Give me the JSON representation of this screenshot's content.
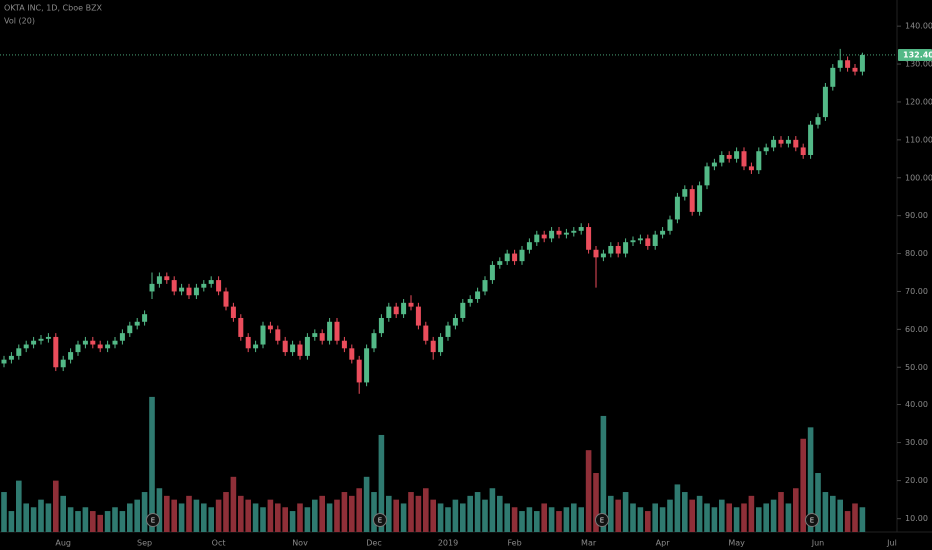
{
  "chart_data": {
    "type": "candlestick",
    "title": "OKTA INC, 1D, Cboe BZX",
    "volume_title": "Vol (20)",
    "earnings_labels": [
      "E",
      "E",
      "E",
      "E"
    ],
    "last_label": "132.40",
    "up_color": "#53b987",
    "down_color": "#eb4d5c",
    "volume_up_color": "#2f7a70",
    "volume_down_color": "#8f2f38",
    "categories": [
      null,
      null,
      null,
      null,
      null,
      null,
      null,
      null,
      "Aug",
      null,
      null,
      null,
      null,
      null,
      null,
      null,
      null,
      null,
      null,
      "Sep",
      null,
      null,
      null,
      null,
      null,
      null,
      null,
      null,
      null,
      "Oct",
      null,
      null,
      null,
      null,
      null,
      null,
      null,
      null,
      null,
      null,
      "Nov",
      null,
      null,
      null,
      null,
      null,
      null,
      null,
      null,
      null,
      "Dec",
      null,
      null,
      null,
      null,
      null,
      null,
      null,
      null,
      null,
      "2019",
      null,
      null,
      null,
      null,
      null,
      null,
      null,
      null,
      "Feb",
      null,
      null,
      null,
      null,
      null,
      null,
      null,
      null,
      null,
      "Mar",
      null,
      null,
      null,
      null,
      null,
      null,
      null,
      null,
      null,
      "Apr",
      null,
      null,
      null,
      null,
      null,
      null,
      null,
      null,
      null,
      "May",
      null,
      null,
      null,
      null,
      null,
      null,
      null,
      null,
      null,
      null,
      "Jun",
      null,
      null,
      null,
      null,
      null,
      null,
      null,
      null,
      null,
      "Jul"
    ],
    "open": [
      51,
      52,
      53,
      55,
      56,
      57,
      57.5,
      58,
      50,
      52,
      54,
      56,
      57,
      56,
      55,
      56,
      57,
      59,
      61,
      62,
      70,
      72,
      74,
      73,
      70,
      71,
      69,
      71,
      72,
      73,
      70,
      66,
      63,
      58,
      55,
      56,
      61,
      60,
      57,
      54,
      56,
      53,
      58,
      59,
      57,
      62,
      57,
      55,
      52,
      46,
      55,
      59,
      63,
      66,
      64,
      67,
      66,
      61,
      57,
      54,
      58,
      61,
      63,
      67,
      68,
      70,
      73,
      77,
      78,
      80,
      78,
      81,
      83,
      85,
      84,
      86,
      85,
      85.5,
      86,
      87,
      81,
      79,
      80,
      82,
      80,
      83,
      83.5,
      84,
      82,
      85,
      86,
      89,
      95,
      97,
      91,
      98,
      103,
      104,
      106,
      105,
      107,
      103,
      102,
      107,
      108,
      110,
      109,
      110,
      108,
      106,
      114,
      116,
      124,
      129,
      131,
      129,
      128,
      null,
      null,
      null,
      null
    ],
    "high": [
      53,
      54,
      56,
      57,
      58,
      58.5,
      59,
      59,
      53,
      55,
      57,
      58,
      58,
      57,
      57,
      58,
      60,
      62,
      63,
      65,
      75,
      75,
      75,
      74,
      72,
      72,
      72,
      73,
      74,
      74,
      71,
      67,
      64,
      59,
      57,
      62,
      62,
      61,
      58,
      57,
      57,
      59,
      60,
      60,
      63,
      63,
      58,
      56,
      53,
      56,
      60,
      64,
      67,
      67,
      68,
      69,
      67,
      62,
      58,
      59,
      62,
      64,
      68,
      69,
      71,
      74,
      78,
      79,
      81,
      81,
      82,
      84,
      86,
      86,
      87,
      87,
      86.5,
      87,
      88,
      88,
      82,
      81,
      83,
      83,
      84,
      84.5,
      85,
      85,
      86,
      87,
      90,
      96,
      98,
      98,
      99,
      104,
      105,
      107,
      107,
      108,
      108,
      104,
      108,
      109,
      111,
      111,
      111,
      111,
      109,
      115,
      117,
      125,
      130,
      134,
      132,
      130,
      133,
      null,
      null,
      null,
      null
    ],
    "low": [
      50,
      51,
      52,
      54,
      55,
      56,
      56.5,
      49,
      49,
      51,
      53,
      55,
      55,
      54,
      54,
      55,
      56,
      58,
      60,
      61,
      68,
      71,
      72,
      69,
      69,
      68,
      68,
      70,
      71,
      69,
      65,
      62,
      57,
      54,
      54,
      55,
      59,
      56,
      53,
      53,
      52,
      52,
      57,
      56,
      56,
      56,
      54,
      51,
      43,
      45,
      54,
      58,
      62,
      63,
      63,
      65,
      60,
      56,
      52,
      53,
      57,
      60,
      62,
      66,
      67,
      69,
      72,
      76,
      77,
      77,
      77,
      80,
      82,
      83,
      83,
      84,
      84,
      84.5,
      85,
      80,
      71,
      78,
      79,
      79,
      79,
      82,
      82.5,
      81,
      81,
      84,
      85,
      88,
      94,
      90,
      90,
      97,
      102,
      103,
      104,
      104,
      102,
      101,
      101,
      106,
      107,
      108,
      108,
      107,
      105,
      105,
      113,
      115,
      123,
      128,
      128,
      127,
      127,
      null,
      null,
      null,
      null
    ],
    "close": [
      52,
      53,
      55,
      56,
      57,
      57.5,
      58,
      50,
      52,
      54,
      56,
      57,
      56,
      55,
      56,
      57,
      59,
      61,
      62,
      64,
      72,
      74,
      73,
      70,
      71,
      69,
      71,
      72,
      73,
      70,
      66,
      63,
      58,
      55,
      56,
      61,
      60,
      57,
      54,
      56,
      53,
      58,
      59,
      57,
      62,
      57,
      55,
      52,
      46,
      55,
      59,
      63,
      66,
      64,
      67,
      66,
      61,
      57,
      54,
      58,
      61,
      63,
      67,
      68,
      70,
      73,
      77,
      78,
      80,
      78,
      81,
      83,
      85,
      84,
      86,
      85,
      85.5,
      86,
      87,
      81,
      79,
      80,
      82,
      80,
      83,
      83.5,
      84,
      82,
      85,
      86,
      89,
      95,
      97,
      91,
      98,
      103,
      104,
      106,
      105,
      107,
      103,
      102,
      107,
      108,
      110,
      109,
      110,
      108,
      106,
      114,
      116,
      124,
      129,
      131,
      129,
      128,
      132.4,
      null,
      null,
      null,
      null
    ],
    "volume": [
      17,
      12,
      20,
      14,
      13,
      15,
      14,
      20,
      16,
      13,
      12,
      13,
      12,
      11,
      12,
      13,
      12,
      14,
      15,
      17,
      42,
      18,
      16,
      15,
      14,
      16,
      15,
      14,
      13,
      15,
      17,
      21,
      16,
      15,
      14,
      13,
      15,
      14,
      13,
      12,
      14,
      13,
      15,
      16,
      14,
      15,
      17,
      16,
      18,
      21,
      17,
      32,
      16,
      15,
      14,
      17,
      16,
      18,
      15,
      14,
      13,
      15,
      14,
      16,
      17,
      15,
      18,
      16,
      14,
      13,
      12,
      13,
      12,
      14,
      13,
      12,
      13,
      14,
      13,
      28,
      22,
      37,
      16,
      15,
      17,
      14,
      13,
      12,
      14,
      13,
      15,
      19,
      17,
      15,
      16,
      14,
      13,
      15,
      14,
      13,
      14,
      16,
      13,
      14,
      15,
      17,
      14,
      18,
      31,
      34,
      22,
      17,
      16,
      15,
      12,
      14,
      13,
      null,
      null,
      null,
      null
    ],
    "ylim": [
      44,
      146.9
    ],
    "yticks": [
      {
        "value": 50,
        "label": "50.00"
      },
      {
        "value": 60,
        "label": "60.00"
      },
      {
        "value": 70,
        "label": "70.00"
      },
      {
        "value": 80,
        "label": "80.00"
      },
      {
        "value": 90,
        "label": "90.00"
      },
      {
        "value": 100,
        "label": "100.00"
      },
      {
        "value": 110,
        "label": "110.00"
      },
      {
        "value": 120,
        "label": "120.00"
      },
      {
        "value": 130,
        "label": "130.00"
      },
      {
        "value": 140,
        "label": "140.00"
      }
    ],
    "y2lim": [
      6.5,
      42.5
    ],
    "y2ticks": [
      {
        "value": 10,
        "label": "10.00"
      },
      {
        "value": 20,
        "label": "20.00"
      },
      {
        "value": 30,
        "label": "30.00"
      },
      {
        "value": 40,
        "label": "40.00"
      }
    ]
  }
}
